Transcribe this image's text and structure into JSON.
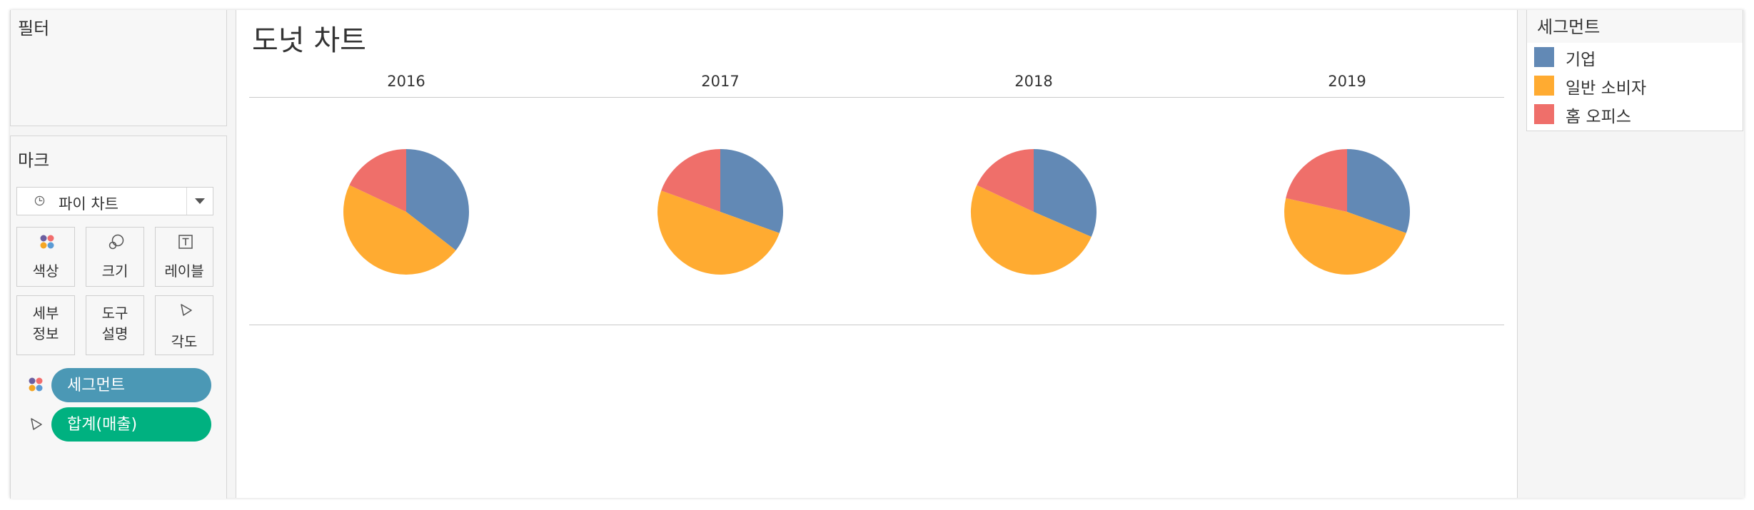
{
  "filters": {
    "title": "필터"
  },
  "marks": {
    "title": "마크",
    "mark_type": "파이 차트",
    "buttons": {
      "color": "색상",
      "size": "크기",
      "label": "레이블",
      "detail_line1": "세부",
      "detail_line2": "정보",
      "tooltip_line1": "도구",
      "tooltip_line2": "설명",
      "angle": "각도"
    },
    "pills": {
      "segment": "세그먼트",
      "sales": "합계(매출)"
    }
  },
  "view": {
    "title": "도넛 차트"
  },
  "legend": {
    "title": "세그먼트",
    "items": [
      {
        "label": "기업",
        "color": "#6289b5"
      },
      {
        "label": "일반 소비자",
        "color": "#ffab31"
      },
      {
        "label": "홈 오피스",
        "color": "#ef6f6a"
      }
    ]
  },
  "chart_data": {
    "type": "pie",
    "title": "도넛 차트",
    "categories": [
      "2016",
      "2017",
      "2018",
      "2019"
    ],
    "series": [
      {
        "name": "기업",
        "color": "#6289b5",
        "values": [
          35.5,
          30.5,
          31.5,
          30.5
        ]
      },
      {
        "name": "일반 소비자",
        "color": "#ffab31",
        "values": [
          46.5,
          50.0,
          50.5,
          48.0
        ]
      },
      {
        "name": "홈 오피스",
        "color": "#ef6f6a",
        "values": [
          18.0,
          19.5,
          18.0,
          21.5
        ]
      }
    ],
    "legend": "right"
  }
}
